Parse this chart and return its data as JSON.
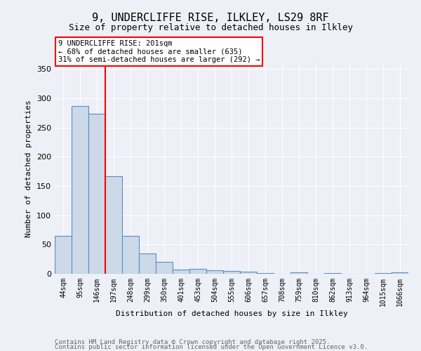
{
  "title_line1": "9, UNDERCLIFFE RISE, ILKLEY, LS29 8RF",
  "title_line2": "Size of property relative to detached houses in Ilkley",
  "xlabel": "Distribution of detached houses by size in Ilkley",
  "ylabel": "Number of detached properties",
  "categories": [
    "44sqm",
    "95sqm",
    "146sqm",
    "197sqm",
    "248sqm",
    "299sqm",
    "350sqm",
    "401sqm",
    "453sqm",
    "504sqm",
    "555sqm",
    "606sqm",
    "657sqm",
    "708sqm",
    "759sqm",
    "810sqm",
    "862sqm",
    "913sqm",
    "964sqm",
    "1015sqm",
    "1066sqm"
  ],
  "values": [
    65,
    287,
    274,
    167,
    65,
    35,
    20,
    7,
    9,
    6,
    5,
    4,
    1,
    0,
    2,
    0,
    1,
    0,
    0,
    1,
    2
  ],
  "bar_color": "#ccd9e8",
  "bar_edge_color": "#5b8ec4",
  "annotation_text": "9 UNDERCLIFFE RISE: 201sqm\n← 68% of detached houses are smaller (635)\n31% of semi-detached houses are larger (292) →",
  "property_line_bin": 3,
  "ylim": [
    0,
    360
  ],
  "yticks": [
    0,
    50,
    100,
    150,
    200,
    250,
    300,
    350
  ],
  "annotation_box_color": "white",
  "annotation_box_edge": "red",
  "vline_color": "red",
  "footer_line1": "Contains HM Land Registry data © Crown copyright and database right 2025.",
  "footer_line2": "Contains public sector information licensed under the Open Government Licence v3.0.",
  "background_color": "#eef0f8",
  "grid_color": "#ffffff",
  "title_fontsize": 11,
  "subtitle_fontsize": 9,
  "axis_label_fontsize": 8,
  "tick_fontsize": 7,
  "annotation_fontsize": 7.5,
  "footer_fontsize": 6.5
}
